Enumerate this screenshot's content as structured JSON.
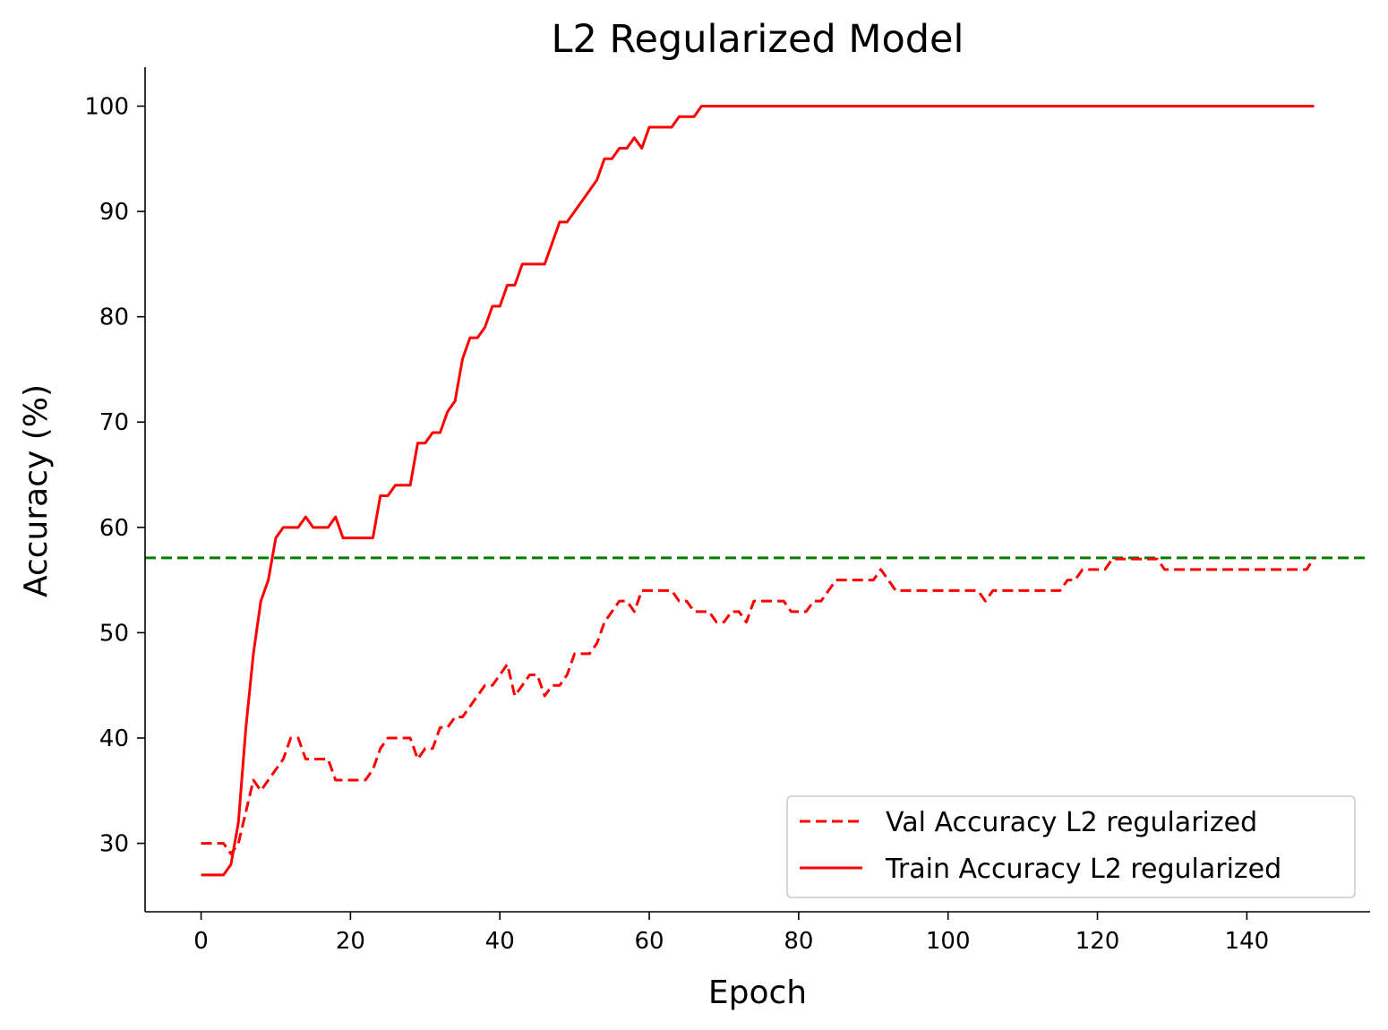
{
  "chart_data": {
    "type": "line",
    "title": "L2 Regularized Model",
    "xlabel": "Epoch",
    "ylabel": "Accuracy (%)",
    "xlim": [
      -7.5,
      156.5
    ],
    "ylim": [
      23.5,
      103.7
    ],
    "xticks": [
      0,
      20,
      40,
      60,
      80,
      100,
      120,
      140
    ],
    "yticks": [
      30,
      40,
      50,
      60,
      70,
      80,
      90,
      100
    ],
    "grid": false,
    "legend_position": "lower-right",
    "series": [
      {
        "name": "Val Accuracy L2 regularized",
        "color": "#ff0000",
        "style": "dashed",
        "x": [
          0,
          1,
          2,
          3,
          4,
          5,
          6,
          7,
          8,
          9,
          10,
          11,
          12,
          13,
          14,
          15,
          16,
          17,
          18,
          19,
          20,
          21,
          22,
          23,
          24,
          25,
          26,
          27,
          28,
          29,
          30,
          31,
          32,
          33,
          34,
          35,
          36,
          37,
          38,
          39,
          40,
          41,
          42,
          43,
          44,
          45,
          46,
          47,
          48,
          49,
          50,
          51,
          52,
          53,
          54,
          55,
          56,
          57,
          58,
          59,
          60,
          61,
          62,
          63,
          64,
          65,
          66,
          67,
          68,
          69,
          70,
          71,
          72,
          73,
          74,
          75,
          76,
          77,
          78,
          79,
          80,
          81,
          82,
          83,
          84,
          85,
          86,
          87,
          88,
          89,
          90,
          91,
          92,
          93,
          94,
          95,
          96,
          97,
          98,
          99,
          100,
          101,
          102,
          103,
          104,
          105,
          106,
          107,
          108,
          109,
          110,
          111,
          112,
          113,
          114,
          115,
          116,
          117,
          118,
          119,
          120,
          121,
          122,
          123,
          124,
          125,
          126,
          127,
          128,
          129,
          130,
          131,
          132,
          133,
          134,
          135,
          136,
          137,
          138,
          139,
          140,
          141,
          142,
          143,
          144,
          145,
          146,
          147,
          148,
          149
        ],
        "values": [
          30,
          30,
          30,
          30,
          29,
          30,
          33,
          36,
          35,
          36,
          37,
          38,
          40,
          40,
          38,
          38,
          38,
          38,
          36,
          36,
          36,
          36,
          36,
          37,
          39,
          40,
          40,
          40,
          40,
          38,
          39,
          39,
          41,
          41,
          42,
          42,
          43,
          44,
          45,
          45,
          46,
          47,
          44,
          45,
          46,
          46,
          44,
          45,
          45,
          46,
          48,
          48,
          48,
          49,
          51,
          52,
          53,
          53,
          52,
          54,
          54,
          54,
          54,
          54,
          53,
          53,
          52,
          52,
          52,
          51,
          51,
          52,
          52,
          51,
          53,
          53,
          53,
          53,
          53,
          52,
          52,
          52,
          53,
          53,
          54,
          55,
          55,
          55,
          55,
          55,
          55,
          56,
          55,
          54,
          54,
          54,
          54,
          54,
          54,
          54,
          54,
          54,
          54,
          54,
          54,
          53,
          54,
          54,
          54,
          54,
          54,
          54,
          54,
          54,
          54,
          54,
          55,
          55,
          56,
          56,
          56,
          56,
          57,
          57,
          57,
          57,
          57,
          57,
          57,
          56,
          56,
          56,
          56,
          56,
          56,
          56,
          56,
          56,
          56,
          56,
          56,
          56,
          56,
          56,
          56,
          56,
          56,
          56,
          56,
          57.1
        ]
      },
      {
        "name": "Train Accuracy L2 regularized",
        "color": "#ff0000",
        "style": "solid",
        "x": [
          0,
          1,
          2,
          3,
          4,
          5,
          6,
          7,
          8,
          9,
          10,
          11,
          12,
          13,
          14,
          15,
          16,
          17,
          18,
          19,
          20,
          21,
          22,
          23,
          24,
          25,
          26,
          27,
          28,
          29,
          30,
          31,
          32,
          33,
          34,
          35,
          36,
          37,
          38,
          39,
          40,
          41,
          42,
          43,
          44,
          45,
          46,
          47,
          48,
          49,
          50,
          51,
          52,
          53,
          54,
          55,
          56,
          57,
          58,
          59,
          60,
          61,
          62,
          63,
          64,
          65,
          66,
          67,
          68,
          69,
          70,
          71,
          72,
          73,
          74,
          75,
          76,
          77,
          78,
          79,
          80,
          81,
          82,
          83,
          84,
          85,
          86,
          87,
          88,
          89,
          90,
          91,
          92,
          93,
          94,
          95,
          96,
          97,
          98,
          99,
          100,
          101,
          102,
          103,
          104,
          105,
          106,
          107,
          108,
          109,
          110,
          111,
          112,
          113,
          114,
          115,
          116,
          117,
          118,
          119,
          120,
          121,
          122,
          123,
          124,
          125,
          126,
          127,
          128,
          129,
          130,
          131,
          132,
          133,
          134,
          135,
          136,
          137,
          138,
          139,
          140,
          141,
          142,
          143,
          144,
          145,
          146,
          147,
          148,
          149
        ],
        "values": [
          27,
          27,
          27,
          27,
          28,
          32,
          41,
          48,
          53,
          55,
          59,
          60,
          60,
          60,
          61,
          60,
          60,
          60,
          61,
          59,
          59,
          59,
          59,
          59,
          63,
          63,
          64,
          64,
          64,
          68,
          68,
          69,
          69,
          71,
          72,
          76,
          78,
          78,
          79,
          81,
          81,
          83,
          83,
          85,
          85,
          85,
          85,
          87,
          89,
          89,
          90,
          91,
          92,
          93,
          95,
          95,
          96,
          96,
          97,
          96,
          98,
          98,
          98,
          98,
          99,
          99,
          99,
          100,
          100,
          100,
          100,
          100,
          100,
          100,
          100,
          100,
          100,
          100,
          100,
          100,
          100,
          100,
          100,
          100,
          100,
          100,
          100,
          100,
          100,
          100,
          100,
          100,
          100,
          100,
          100,
          100,
          100,
          100,
          100,
          100,
          100,
          100,
          100,
          100,
          100,
          100,
          100,
          100,
          100,
          100,
          100,
          100,
          100,
          100,
          100,
          100,
          100,
          100,
          100,
          100,
          100,
          100,
          100,
          100,
          100,
          100,
          100,
          100,
          100,
          100,
          100,
          100,
          100,
          100,
          100,
          100,
          100,
          100,
          100,
          100,
          100,
          100,
          100,
          100,
          100,
          100,
          100,
          100,
          100,
          100
        ]
      }
    ],
    "reference_line": {
      "orientation": "horizontal",
      "y": 57.1,
      "color": "#008000",
      "style": "dashed"
    }
  }
}
